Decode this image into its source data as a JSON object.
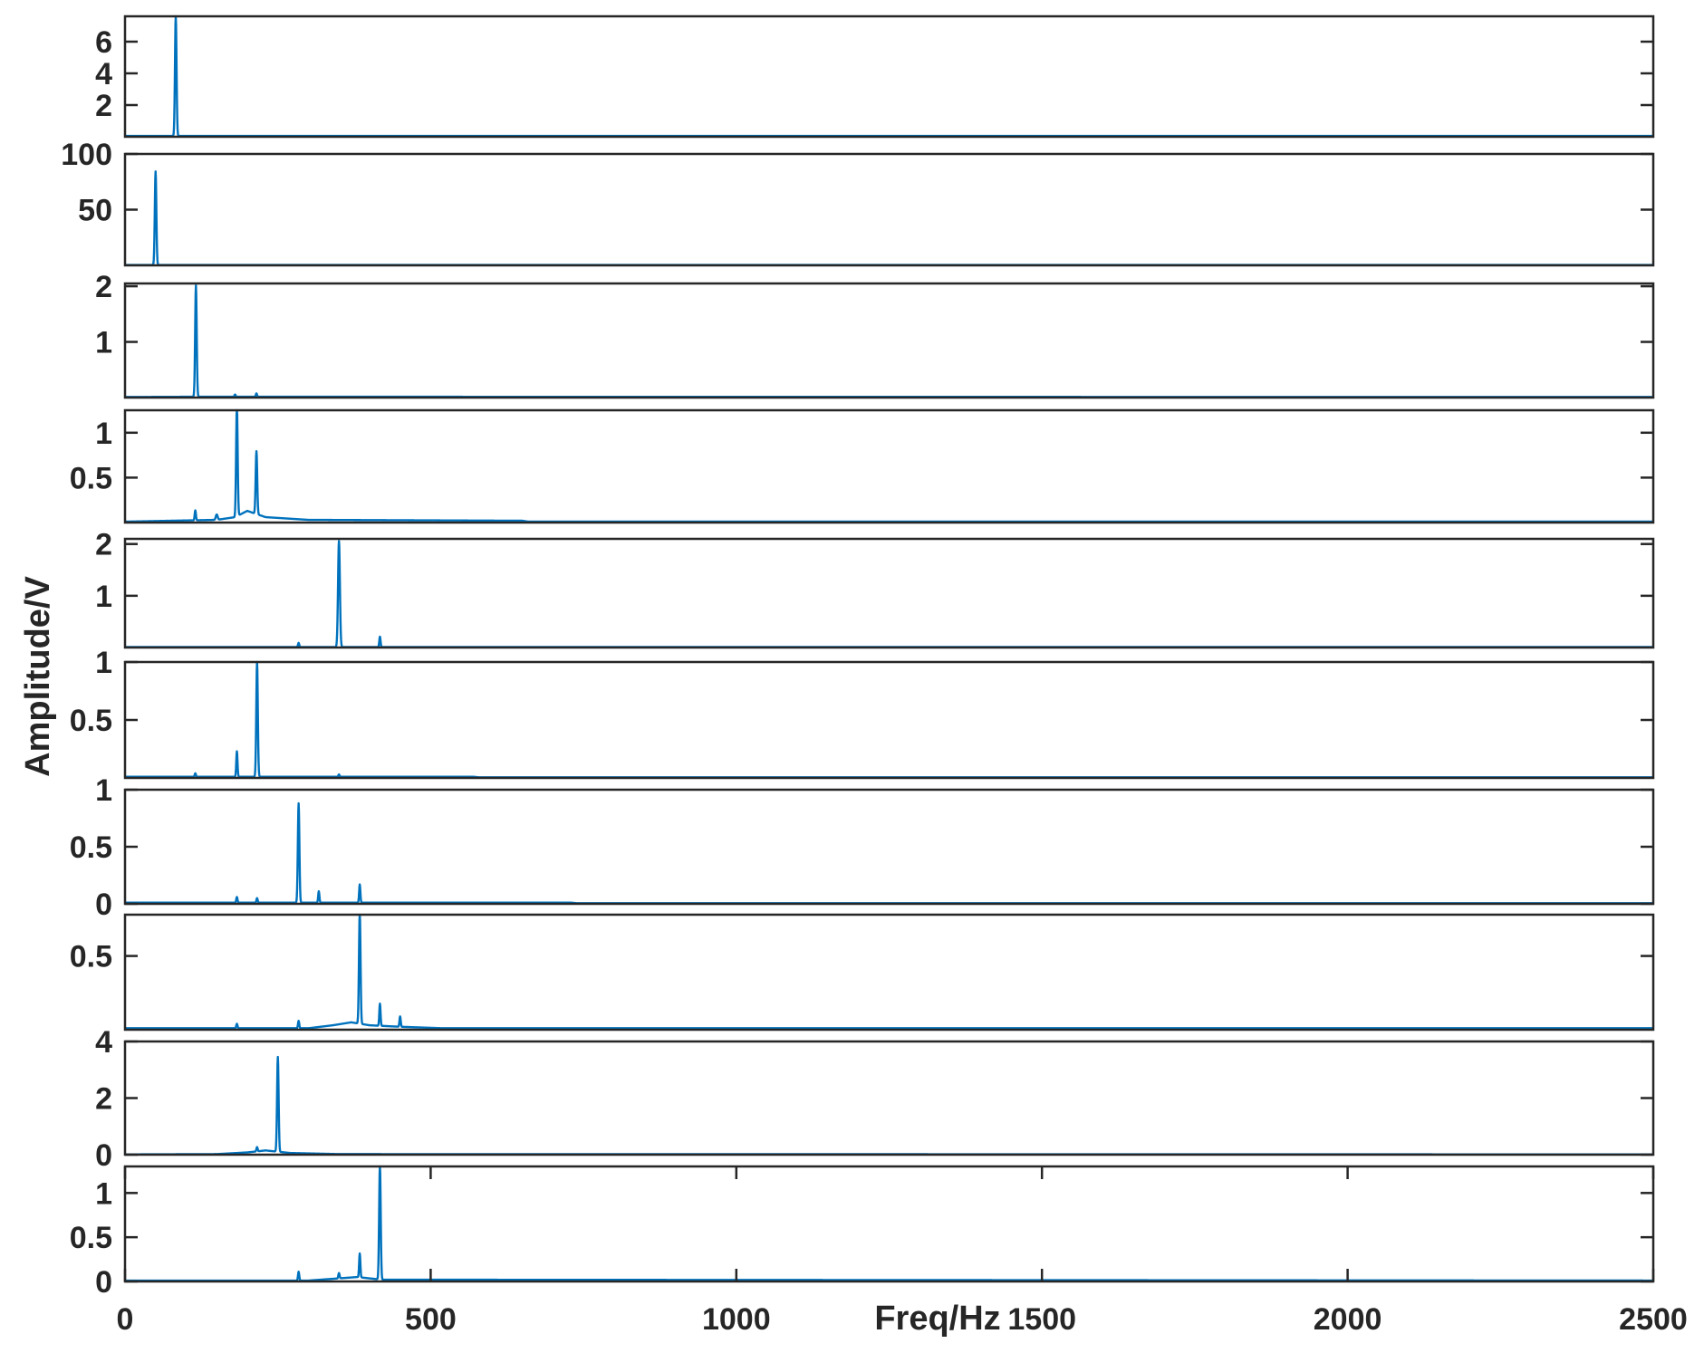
{
  "chart_data": {
    "type": "line",
    "title": "",
    "xlabel": "Freq/Hz",
    "ylabel": "Amplitude/V",
    "xlim": [
      0,
      2500
    ],
    "xticks": [
      0,
      500,
      1000,
      1500,
      2000,
      2500
    ],
    "grid": false,
    "line_color": "#0072BD",
    "panels": [
      {
        "ylim": [
          0,
          7.6
        ],
        "yticks": [
          {
            "v": 2,
            "label": "2"
          },
          {
            "v": 4,
            "label": "4"
          },
          {
            "v": 6,
            "label": "6"
          }
        ],
        "base": [
          [
            0,
            0.05
          ],
          [
            2500,
            0.05
          ]
        ],
        "peaks": [
          {
            "x": 83,
            "y": 7.6,
            "w": 2.5
          }
        ]
      },
      {
        "ylim": [
          0,
          100
        ],
        "yticks": [
          {
            "v": 50,
            "label": "50"
          },
          {
            "v": 100,
            "label": "100"
          }
        ],
        "base": [
          [
            0,
            0.3
          ],
          [
            2500,
            0.3
          ]
        ],
        "peaks": [
          {
            "x": 50,
            "y": 84,
            "w": 2.5
          }
        ]
      },
      {
        "ylim": [
          0,
          2.05
        ],
        "yticks": [
          {
            "v": 1,
            "label": "1"
          },
          {
            "v": 2,
            "label": "2"
          }
        ],
        "base": [
          [
            0,
            0.01
          ],
          [
            110,
            0.015
          ],
          [
            2500,
            0.01
          ]
        ],
        "peaks": [
          {
            "x": 116,
            "y": 2.0,
            "w": 2.5
          },
          {
            "x": 180,
            "y": 0.04,
            "w": 2
          },
          {
            "x": 215,
            "y": 0.06,
            "w": 2
          }
        ]
      },
      {
        "ylim": [
          0,
          1.25
        ],
        "yticks": [
          {
            "v": 0.5,
            "label": "0.5"
          },
          {
            "v": 1,
            "label": "1"
          }
        ],
        "base": [
          [
            0,
            0.01
          ],
          [
            150,
            0.03
          ],
          [
            180,
            0.06
          ],
          [
            200,
            0.13
          ],
          [
            230,
            0.06
          ],
          [
            300,
            0.03
          ],
          [
            650,
            0.02
          ],
          [
            660,
            0.01
          ],
          [
            2500,
            0.01
          ]
        ],
        "peaks": [
          {
            "x": 115,
            "y": 0.11,
            "w": 2
          },
          {
            "x": 150,
            "y": 0.06,
            "w": 3
          },
          {
            "x": 183,
            "y": 1.23,
            "w": 2.5
          },
          {
            "x": 215,
            "y": 0.7,
            "w": 2.5
          }
        ]
      },
      {
        "ylim": [
          0,
          2.1
        ],
        "yticks": [
          {
            "v": 1,
            "label": "1"
          },
          {
            "v": 2,
            "label": "2"
          }
        ],
        "base": [
          [
            0,
            0.01
          ],
          [
            2500,
            0.01
          ]
        ],
        "peaks": [
          {
            "x": 284,
            "y": 0.08,
            "w": 2
          },
          {
            "x": 350,
            "y": 2.05,
            "w": 3
          },
          {
            "x": 417,
            "y": 0.2,
            "w": 2
          }
        ]
      },
      {
        "ylim": [
          0,
          1.0
        ],
        "yticks": [
          {
            "v": 0.5,
            "label": "0.5"
          },
          {
            "v": 1,
            "label": "1"
          }
        ],
        "base": [
          [
            0,
            0.01
          ],
          [
            570,
            0.01
          ],
          [
            580,
            0.005
          ],
          [
            2500,
            0.005
          ]
        ],
        "peaks": [
          {
            "x": 115,
            "y": 0.03,
            "w": 2
          },
          {
            "x": 183,
            "y": 0.22,
            "w": 2
          },
          {
            "x": 216,
            "y": 0.99,
            "w": 2.5
          },
          {
            "x": 350,
            "y": 0.02,
            "w": 2
          }
        ]
      },
      {
        "ylim": [
          0,
          1.0
        ],
        "yticks": [
          {
            "v": 0,
            "label": "0"
          },
          {
            "v": 0.5,
            "label": "0.5"
          },
          {
            "v": 1,
            "label": "1"
          }
        ],
        "base": [
          [
            0,
            0.01
          ],
          [
            730,
            0.01
          ],
          [
            740,
            0.005
          ],
          [
            2500,
            0.005
          ]
        ],
        "peaks": [
          {
            "x": 183,
            "y": 0.05,
            "w": 2
          },
          {
            "x": 216,
            "y": 0.04,
            "w": 2
          },
          {
            "x": 284,
            "y": 0.87,
            "w": 2.5
          },
          {
            "x": 317,
            "y": 0.1,
            "w": 2
          },
          {
            "x": 384,
            "y": 0.16,
            "w": 2
          }
        ]
      },
      {
        "ylim": [
          0,
          0.78
        ],
        "yticks": [
          {
            "v": 0.5,
            "label": "0.5"
          }
        ],
        "base": [
          [
            0,
            0.01
          ],
          [
            300,
            0.01
          ],
          [
            340,
            0.03
          ],
          [
            370,
            0.05
          ],
          [
            400,
            0.03
          ],
          [
            450,
            0.02
          ],
          [
            520,
            0.01
          ],
          [
            2500,
            0.01
          ]
        ],
        "peaks": [
          {
            "x": 183,
            "y": 0.03,
            "w": 2
          },
          {
            "x": 284,
            "y": 0.05,
            "w": 2
          },
          {
            "x": 384,
            "y": 0.76,
            "w": 2.5
          },
          {
            "x": 417,
            "y": 0.15,
            "w": 2
          },
          {
            "x": 450,
            "y": 0.07,
            "w": 2
          }
        ]
      },
      {
        "ylim": [
          0,
          4
        ],
        "yticks": [
          {
            "v": 0,
            "label": "0"
          },
          {
            "v": 2,
            "label": "2"
          },
          {
            "v": 4,
            "label": "4"
          }
        ],
        "base": [
          [
            0,
            0.01
          ],
          [
            150,
            0.02
          ],
          [
            200,
            0.08
          ],
          [
            230,
            0.15
          ],
          [
            270,
            0.06
          ],
          [
            350,
            0.02
          ],
          [
            2500,
            0.01
          ]
        ],
        "peaks": [
          {
            "x": 216,
            "y": 0.15,
            "w": 2
          },
          {
            "x": 250,
            "y": 3.35,
            "w": 2.5
          }
        ]
      },
      {
        "ylim": [
          0,
          1.3
        ],
        "yticks": [
          {
            "v": 0,
            "label": "0"
          },
          {
            "v": 0.5,
            "label": "0.5"
          },
          {
            "v": 1,
            "label": "1"
          }
        ],
        "base": [
          [
            0,
            0.01
          ],
          [
            300,
            0.01
          ],
          [
            380,
            0.05
          ],
          [
            420,
            0.02
          ],
          [
            2500,
            0.01
          ]
        ],
        "peaks": [
          {
            "x": 284,
            "y": 0.1,
            "w": 2
          },
          {
            "x": 350,
            "y": 0.06,
            "w": 2
          },
          {
            "x": 384,
            "y": 0.27,
            "w": 2
          },
          {
            "x": 417,
            "y": 1.3,
            "w": 2.5
          }
        ]
      }
    ]
  }
}
